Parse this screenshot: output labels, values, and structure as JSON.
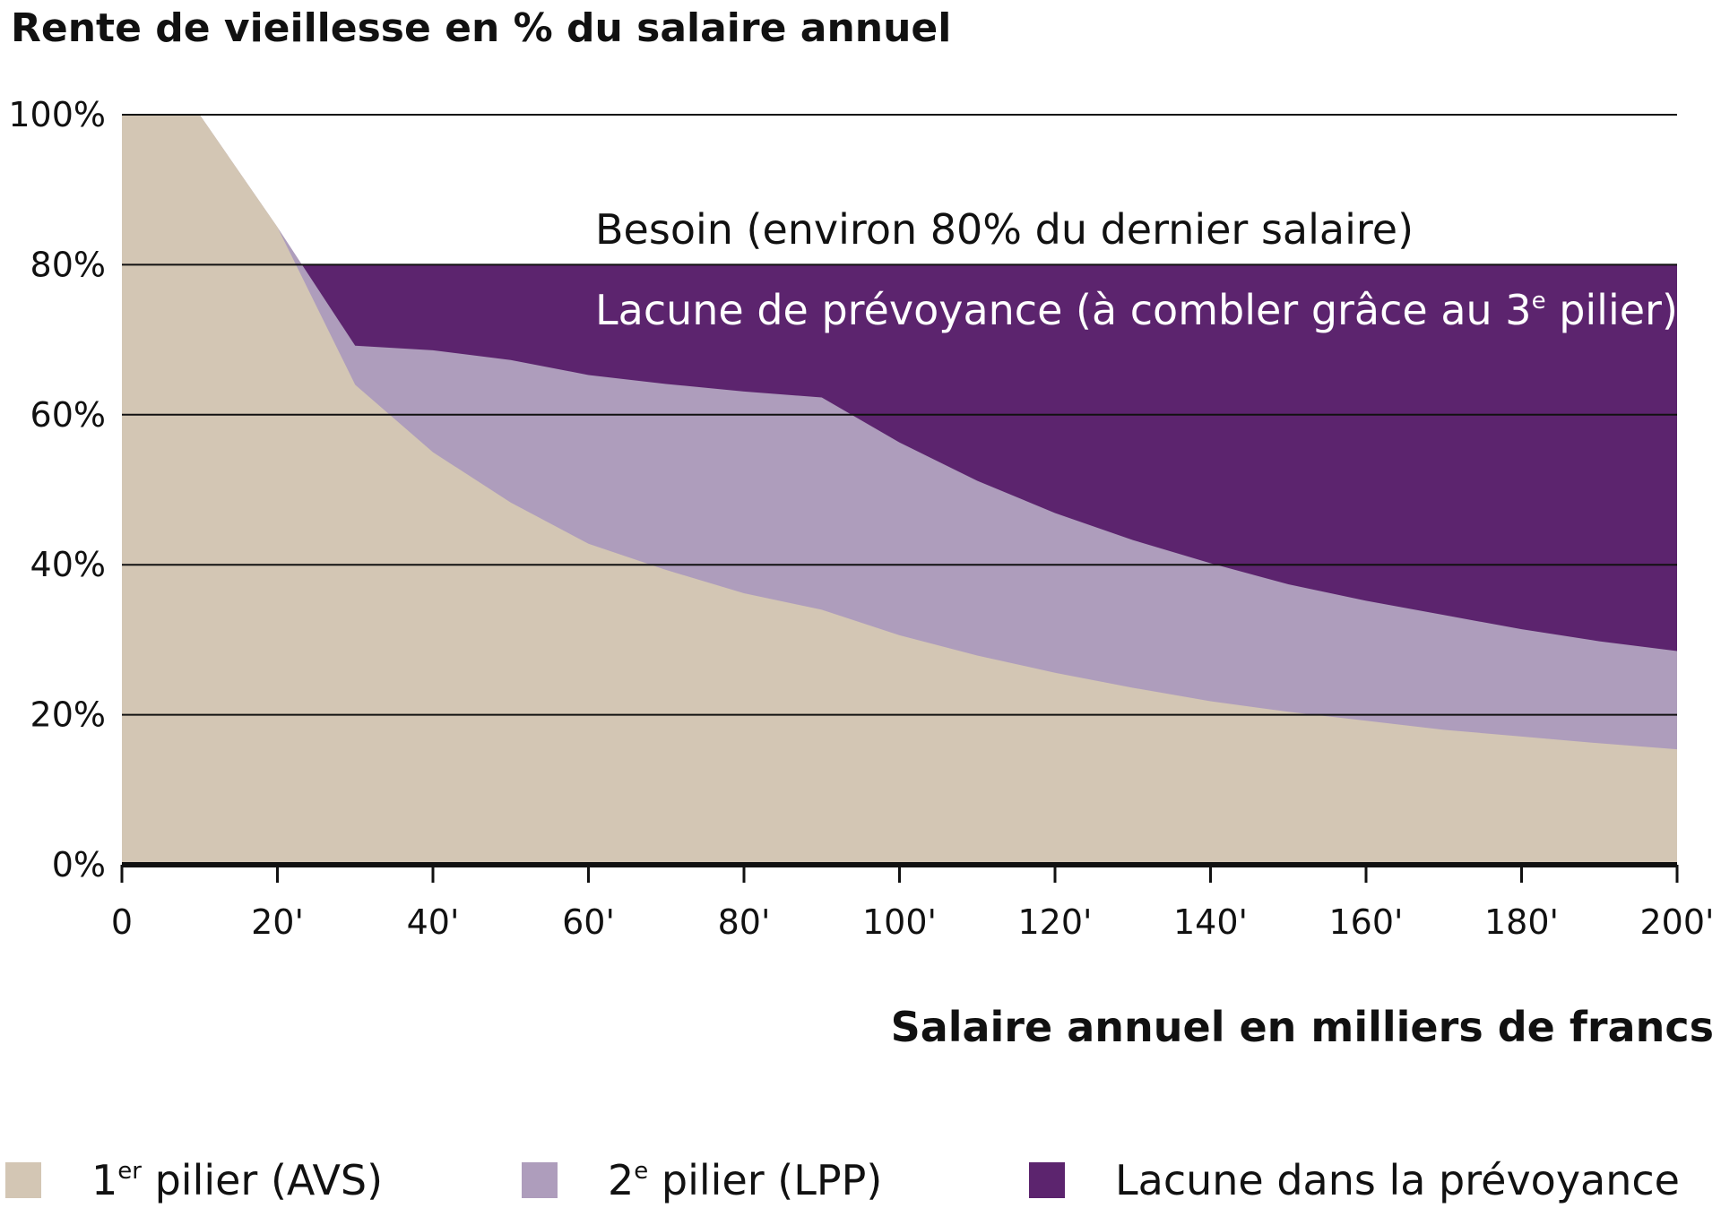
{
  "chart_data": {
    "type": "area",
    "title": "Rente de vieillesse en % du salaire annuel",
    "xlabel": "Salaire annuel en milliers de francs",
    "ylabel": "",
    "xlim": [
      0,
      200
    ],
    "ylim": [
      0,
      100
    ],
    "grid": true,
    "x_ticks": [
      {
        "value": 0,
        "label": "0"
      },
      {
        "value": 20,
        "label": "20'"
      },
      {
        "value": 40,
        "label": "40'"
      },
      {
        "value": 60,
        "label": "60'"
      },
      {
        "value": 80,
        "label": "80'"
      },
      {
        "value": 100,
        "label": "100'"
      },
      {
        "value": 120,
        "label": "120'"
      },
      {
        "value": 140,
        "label": "140'"
      },
      {
        "value": 160,
        "label": "160'"
      },
      {
        "value": 180,
        "label": "180'"
      },
      {
        "value": 200,
        "label": "200'"
      }
    ],
    "y_ticks": [
      {
        "value": 0,
        "label": "0%"
      },
      {
        "value": 20,
        "label": "20%"
      },
      {
        "value": 40,
        "label": "40%"
      },
      {
        "value": 60,
        "label": "60%"
      },
      {
        "value": 80,
        "label": "80%"
      },
      {
        "value": 100,
        "label": "100%"
      }
    ],
    "annotations": {
      "besoin": "Besoin (environ 80% du dernier salaire)",
      "lacune_main": "Lacune de prévoyance (à combler grâce au 3",
      "lacune_sup": "e",
      "lacune_end": " pilier)"
    },
    "legend_position": "bottom",
    "series": [
      {
        "key": "avs",
        "legend_main": "1",
        "legend_sup": "er",
        "legend_rest": " pilier (AVS)",
        "color": "#d3c6b4",
        "x": [
          0,
          10,
          20,
          30,
          40,
          50,
          60,
          70,
          80,
          90,
          100,
          110,
          120,
          130,
          140,
          150,
          160,
          170,
          180,
          190,
          200
        ],
        "y": [
          100,
          100,
          85,
          64,
          55,
          48.3,
          42.8,
          39.3,
          36.2,
          34,
          30.6,
          27.9,
          25.6,
          23.6,
          21.8,
          20.4,
          19.2,
          18,
          17.1,
          16.2,
          15.4
        ]
      },
      {
        "key": "lpp",
        "legend_main": "2",
        "legend_sup": "e",
        "legend_rest": " pilier (LPP)",
        "color": "#ae9dbc",
        "x": [
          0,
          10,
          20,
          30,
          40,
          50,
          60,
          70,
          80,
          90,
          100,
          110,
          120,
          130,
          140,
          150,
          160,
          170,
          180,
          190,
          200
        ],
        "y": [
          100,
          100,
          85,
          69.2,
          68.6,
          67.3,
          65.3,
          64.1,
          63.1,
          62.3,
          56.3,
          51.2,
          46.9,
          43.3,
          40.2,
          37.4,
          35.2,
          33.3,
          31.4,
          29.8,
          28.5
        ]
      },
      {
        "key": "lacune",
        "legend_main": "Lacune dans la prévoyance",
        "legend_sup": "",
        "legend_rest": "",
        "color": "#5c246e",
        "x": [
          0,
          200
        ],
        "y": [
          80,
          80
        ]
      }
    ]
  }
}
